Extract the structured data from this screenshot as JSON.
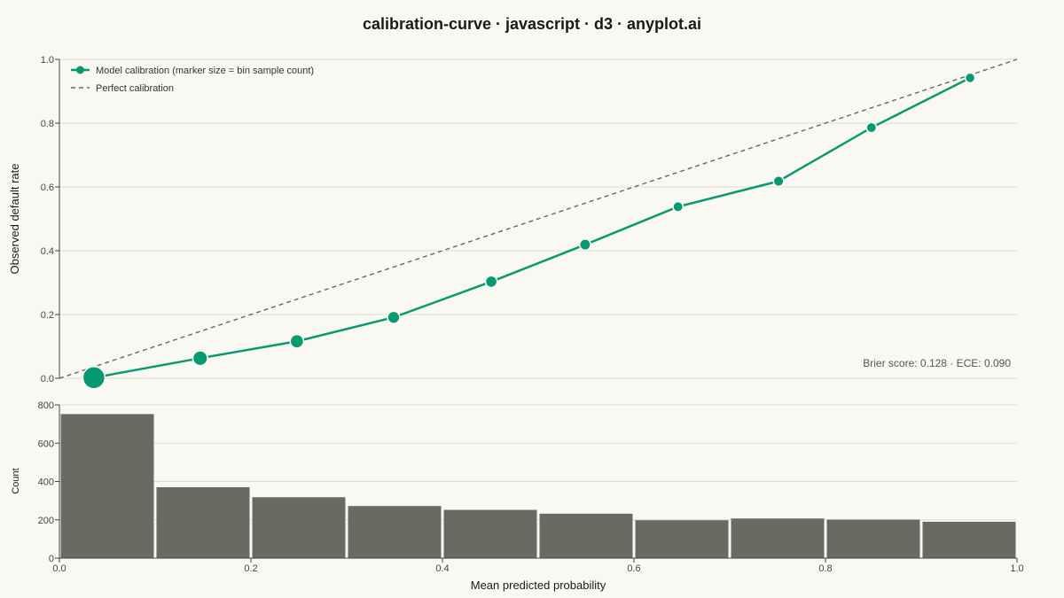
{
  "title": "calibration-curve · javascript · d3 · anyplot.ai",
  "colors": {
    "background": "#faf8f3",
    "curve": "#079a72",
    "hist": "#6b6a62",
    "diagonal": "#666666"
  },
  "chart_data": [
    {
      "type": "line",
      "xlim": [
        0,
        1
      ],
      "ylim": [
        0,
        1
      ],
      "ylabel": "Observed default rate",
      "yticks": [
        "0.0",
        "0.2",
        "0.4",
        "0.6",
        "0.8",
        "1.0"
      ],
      "grid": true,
      "legend_position": "top-left",
      "series": [
        {
          "name": "Model calibration (marker size = bin sample count)",
          "x": [
            0.036,
            0.147,
            0.248,
            0.349,
            0.451,
            0.549,
            0.646,
            0.751,
            0.848,
            0.951
          ],
          "y": [
            0.002,
            0.063,
            0.116,
            0.191,
            0.303,
            0.419,
            0.538,
            0.618,
            0.786,
            0.942
          ]
        },
        {
          "name": "Perfect calibration",
          "x": [
            0,
            1
          ],
          "y": [
            0,
            1
          ]
        }
      ],
      "annotation": "Brier score: 0.128 · ECE: 0.090"
    },
    {
      "type": "bar",
      "xlim": [
        0,
        1
      ],
      "ylim": [
        0,
        800
      ],
      "xlabel": "Mean predicted probability",
      "ylabel": "Count",
      "xticks": [
        "0.0",
        "0.2",
        "0.4",
        "0.6",
        "0.8",
        "1.0"
      ],
      "yticks": [
        "0",
        "200",
        "400",
        "600",
        "800"
      ],
      "bins": [
        [
          0,
          0.1
        ],
        [
          0.1,
          0.2
        ],
        [
          0.2,
          0.3
        ],
        [
          0.3,
          0.4
        ],
        [
          0.4,
          0.5
        ],
        [
          0.5,
          0.6
        ],
        [
          0.6,
          0.7
        ],
        [
          0.7,
          0.8
        ],
        [
          0.8,
          0.9
        ],
        [
          0.9,
          1.0
        ]
      ],
      "values": [
        752,
        370,
        318,
        272,
        252,
        232,
        198,
        207,
        201,
        190
      ]
    }
  ]
}
